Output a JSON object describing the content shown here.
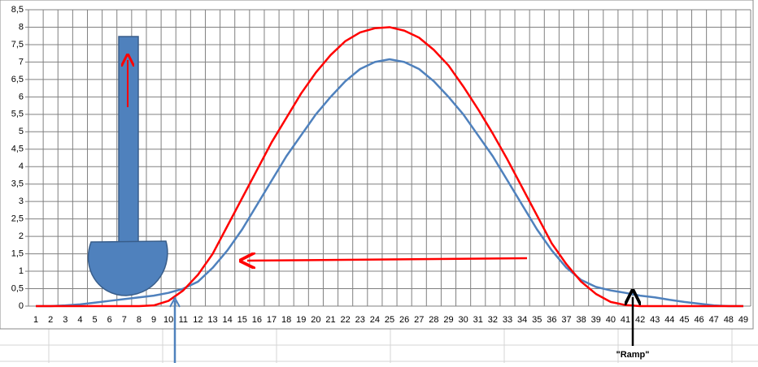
{
  "chart_data": {
    "type": "line",
    "categories": [
      1,
      2,
      3,
      4,
      5,
      6,
      7,
      8,
      9,
      10,
      11,
      12,
      13,
      14,
      15,
      16,
      17,
      18,
      19,
      20,
      21,
      22,
      23,
      24,
      25,
      26,
      27,
      28,
      29,
      30,
      31,
      32,
      33,
      34,
      35,
      36,
      37,
      38,
      39,
      40,
      41,
      42,
      43,
      44,
      45,
      46,
      47,
      48,
      49
    ],
    "series": [
      {
        "color": "#4f81bd",
        "values": [
          0,
          0,
          0.02,
          0.05,
          0.1,
          0.15,
          0.2,
          0.25,
          0.3,
          0.38,
          0.5,
          0.7,
          1.1,
          1.6,
          2.2,
          2.9,
          3.6,
          4.3,
          4.9,
          5.5,
          6.0,
          6.45,
          6.8,
          7.0,
          7.08,
          7.0,
          6.8,
          6.45,
          6.0,
          5.5,
          4.9,
          4.3,
          3.6,
          2.9,
          2.2,
          1.6,
          1.1,
          0.75,
          0.55,
          0.45,
          0.38,
          0.3,
          0.25,
          0.18,
          0.12,
          0.07,
          0.02,
          0,
          0
        ]
      },
      {
        "color": "#ff0000",
        "values": [
          0,
          0,
          0,
          0,
          0,
          0,
          0,
          0,
          0.02,
          0.15,
          0.45,
          0.9,
          1.5,
          2.3,
          3.1,
          3.9,
          4.7,
          5.4,
          6.1,
          6.7,
          7.2,
          7.6,
          7.85,
          7.97,
          8.0,
          7.9,
          7.7,
          7.35,
          6.9,
          6.3,
          5.65,
          4.95,
          4.2,
          3.4,
          2.6,
          1.8,
          1.2,
          0.7,
          0.35,
          0.12,
          0.03,
          0,
          0,
          0,
          0,
          0,
          0,
          0,
          0
        ]
      }
    ],
    "ylim": [
      0,
      8.5
    ],
    "yticks": [
      0,
      {
        "value": 0.5,
        "label": "0,5"
      },
      1,
      {
        "value": 1.5,
        "label": "1,5"
      },
      2,
      {
        "value": 2.5,
        "label": "2,5"
      },
      3,
      {
        "value": 3.5,
        "label": "3,5"
      },
      4,
      {
        "value": 4.5,
        "label": "4,5"
      },
      5,
      {
        "value": 5.5,
        "label": "5,5"
      },
      6,
      {
        "value": 6.5,
        "label": "6,5"
      },
      7,
      {
        "value": 7.5,
        "label": "7,5"
      },
      8,
      {
        "value": 8.5,
        "label": "8,5"
      }
    ],
    "grid": true,
    "annotations": [
      "\"Ramp\""
    ]
  }
}
